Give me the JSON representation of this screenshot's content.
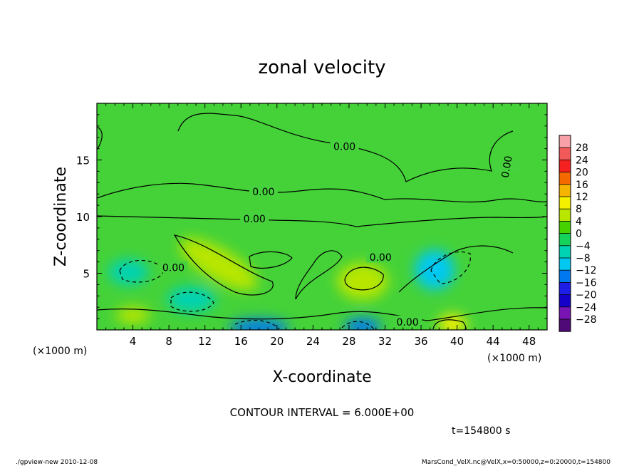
{
  "chart_data": {
    "type": "heatmap",
    "title": "zonal velocity",
    "xlabel": "X-coordinate",
    "ylabel": "Z-coordinate",
    "x_unit_label": "(×1000 m)",
    "y_unit_label": "(×1000 m)",
    "xlim": [
      0,
      50
    ],
    "ylim": [
      0,
      20
    ],
    "x_ticks": [
      4,
      8,
      12,
      16,
      20,
      24,
      28,
      32,
      36,
      40,
      44,
      48
    ],
    "y_ticks": [
      5,
      10,
      15
    ],
    "contour_interval_text": "CONTOUR INTERVAL = 6.000E+00",
    "time_text": "t=154800 s",
    "contour_labels": [
      {
        "text": "0.00",
        "x": 27.5,
        "z": 16.2
      },
      {
        "text": "0.00",
        "x": 45.5,
        "z": 14.4
      },
      {
        "text": "0.00",
        "x": 18.5,
        "z": 12.2
      },
      {
        "text": "0.00",
        "x": 17.5,
        "z": 9.8
      },
      {
        "text": "0.00",
        "x": 31.5,
        "z": 6.4
      },
      {
        "text": "0.00",
        "x": 8.5,
        "z": 5.5
      },
      {
        "text": "0.00",
        "x": 34.5,
        "z": 0.7
      }
    ],
    "features": [
      {
        "type": "max",
        "x": 13.5,
        "z": 5.8,
        "value": 6
      },
      {
        "type": "max",
        "x": 29.5,
        "z": 4.3,
        "value": 6
      },
      {
        "type": "max",
        "x": 39.5,
        "z": 0.5,
        "value": 8
      },
      {
        "type": "max",
        "x": 4.0,
        "z": 1.3,
        "value": 5
      },
      {
        "type": "min",
        "x": 3.5,
        "z": 5.1,
        "value": -9
      },
      {
        "type": "min",
        "x": 37.5,
        "z": 5.3,
        "value": -10
      },
      {
        "type": "min",
        "x": 10.5,
        "z": 2.7,
        "value": -8
      },
      {
        "type": "min",
        "x": 18.0,
        "z": 0.2,
        "value": -16
      },
      {
        "type": "min",
        "x": 29.5,
        "z": 0.3,
        "value": -14
      }
    ],
    "colorbar": {
      "labels": [
        "28",
        "24",
        "20",
        "16",
        "12",
        "8",
        "4",
        "0",
        "−4",
        "−8",
        "−12",
        "−16",
        "−20",
        "−24",
        "−28"
      ],
      "colors": [
        "#f7a0a8",
        "#f25a5a",
        "#f52020",
        "#f56a00",
        "#f5b400",
        "#f5f000",
        "#b8e600",
        "#46d200",
        "#14d25a",
        "#00d2b4",
        "#00c8f0",
        "#0078f0",
        "#1e1ee6",
        "#1400c8",
        "#7814b4",
        "#500a78"
      ]
    },
    "legend": "right"
  },
  "footer": {
    "left": "./gpview-new  2010-12-08",
    "right": "MarsCond_VelX.nc@VelX,x=0:50000,z=0:20000,t=154800"
  }
}
